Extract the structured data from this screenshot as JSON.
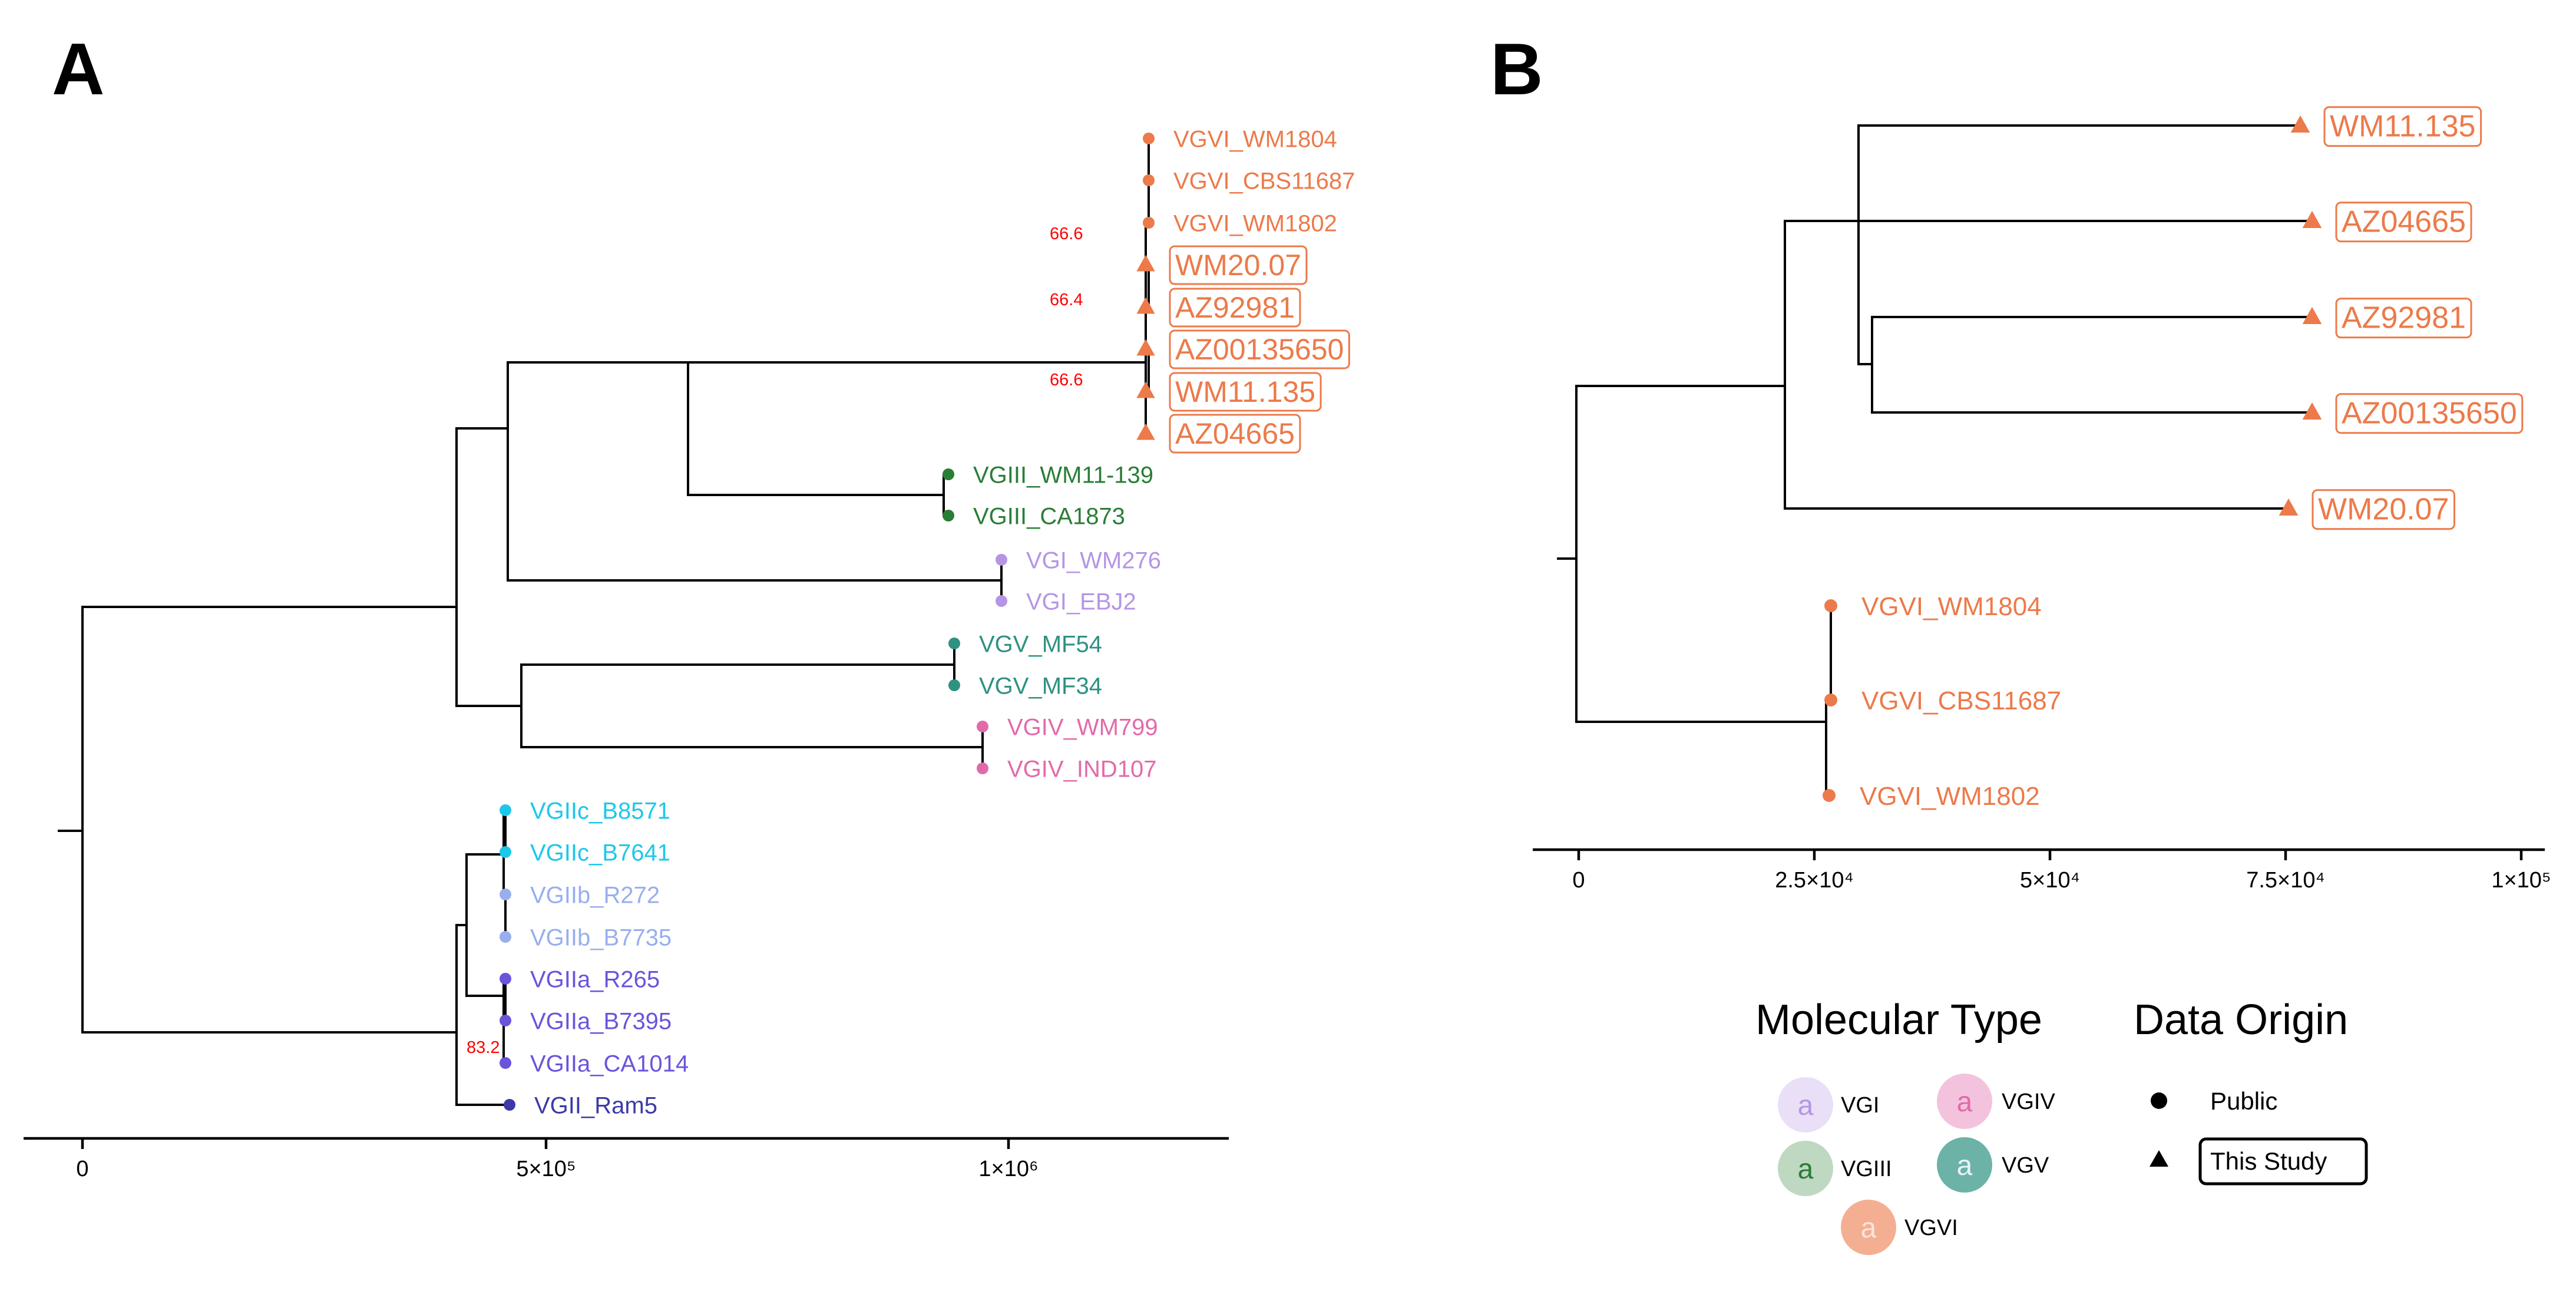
{
  "panels": {
    "a": "A",
    "b": "B"
  },
  "colors": {
    "VGI": "#b595e5",
    "VGII": "#3c3aa6",
    "VGIIa": "#6a54dc",
    "VGIIb": "#98afee",
    "VGIIc": "#1cc8ea",
    "VGIII": "#2a7d36",
    "VGIV": "#e26aaa",
    "VGV": "#2e9182",
    "VGVI": "#ec7a4a"
  },
  "tree_a": {
    "tips": [
      {
        "label": "VGVI_WM1804",
        "type": "VGVI",
        "origin": "public"
      },
      {
        "label": "VGVI_CBS11687",
        "type": "VGVI",
        "origin": "public"
      },
      {
        "label": "VGVI_WM1802",
        "type": "VGVI",
        "origin": "public"
      },
      {
        "label": "WM20.07",
        "type": "VGVI",
        "origin": "study"
      },
      {
        "label": "AZ92981",
        "type": "VGVI",
        "origin": "study"
      },
      {
        "label": "AZ00135650",
        "type": "VGVI",
        "origin": "study"
      },
      {
        "label": "WM11.135",
        "type": "VGVI",
        "origin": "study"
      },
      {
        "label": "AZ04665",
        "type": "VGVI",
        "origin": "study"
      },
      {
        "label": "VGIII_WM11-139",
        "type": "VGIII",
        "origin": "public"
      },
      {
        "label": "VGIII_CA1873",
        "type": "VGIII",
        "origin": "public"
      },
      {
        "label": "VGI_WM276",
        "type": "VGI",
        "origin": "public"
      },
      {
        "label": "VGI_EBJ2",
        "type": "VGI",
        "origin": "public"
      },
      {
        "label": "VGV_MF54",
        "type": "VGV",
        "origin": "public"
      },
      {
        "label": "VGV_MF34",
        "type": "VGV",
        "origin": "public"
      },
      {
        "label": "VGIV_WM799",
        "type": "VGIV",
        "origin": "public"
      },
      {
        "label": "VGIV_IND107",
        "type": "VGIV",
        "origin": "public"
      },
      {
        "label": "VGIIc_B8571",
        "type": "VGIIc",
        "origin": "public"
      },
      {
        "label": "VGIIc_B7641",
        "type": "VGIIc",
        "origin": "public"
      },
      {
        "label": "VGIIb_R272",
        "type": "VGIIb",
        "origin": "public"
      },
      {
        "label": "VGIIb_B7735",
        "type": "VGIIb",
        "origin": "public"
      },
      {
        "label": "VGIIa_R265",
        "type": "VGIIa",
        "origin": "public"
      },
      {
        "label": "VGIIa_B7395",
        "type": "VGIIa",
        "origin": "public"
      },
      {
        "label": "VGIIa_CA1014",
        "type": "VGIIa",
        "origin": "public"
      },
      {
        "label": "VGII_Ram5",
        "type": "VGII",
        "origin": "public"
      }
    ],
    "bootstrap": [
      "66.6",
      "66.4",
      "66.6",
      "83.2"
    ],
    "axis": {
      "ticks": [
        "0",
        "5×10⁵",
        "1×10⁶"
      ]
    }
  },
  "tree_b": {
    "tips": [
      {
        "label": "WM11.135",
        "type": "VGVI",
        "origin": "study"
      },
      {
        "label": "AZ04665",
        "type": "VGVI",
        "origin": "study"
      },
      {
        "label": "AZ92981",
        "type": "VGVI",
        "origin": "study"
      },
      {
        "label": "AZ00135650",
        "type": "VGVI",
        "origin": "study"
      },
      {
        "label": "WM20.07",
        "type": "VGVI",
        "origin": "study"
      },
      {
        "label": "VGVI_WM1804",
        "type": "VGVI",
        "origin": "public"
      },
      {
        "label": "VGVI_CBS11687",
        "type": "VGVI",
        "origin": "public"
      },
      {
        "label": "VGVI_WM1802",
        "type": "VGVI",
        "origin": "public"
      }
    ],
    "axis": {
      "ticks": [
        "0",
        "2.5×10⁴",
        "5×10⁴",
        "7.5×10⁴",
        "1×10⁵"
      ]
    }
  },
  "legend": {
    "molecular_type": {
      "title": "Molecular Type",
      "glyph": "a",
      "items": [
        {
          "label": "VGI",
          "type": "VGI"
        },
        {
          "label": "VGIV",
          "type": "VGIV"
        },
        {
          "label": "VGIII",
          "type": "VGIII"
        },
        {
          "label": "VGV",
          "type": "VGV"
        },
        {
          "label": "VGVI",
          "type": "VGVI"
        }
      ]
    },
    "data_origin": {
      "title": "Data Origin",
      "items": [
        {
          "label": "Public",
          "shape": "circle"
        },
        {
          "label": "This Study",
          "shape": "triangle"
        }
      ]
    }
  }
}
